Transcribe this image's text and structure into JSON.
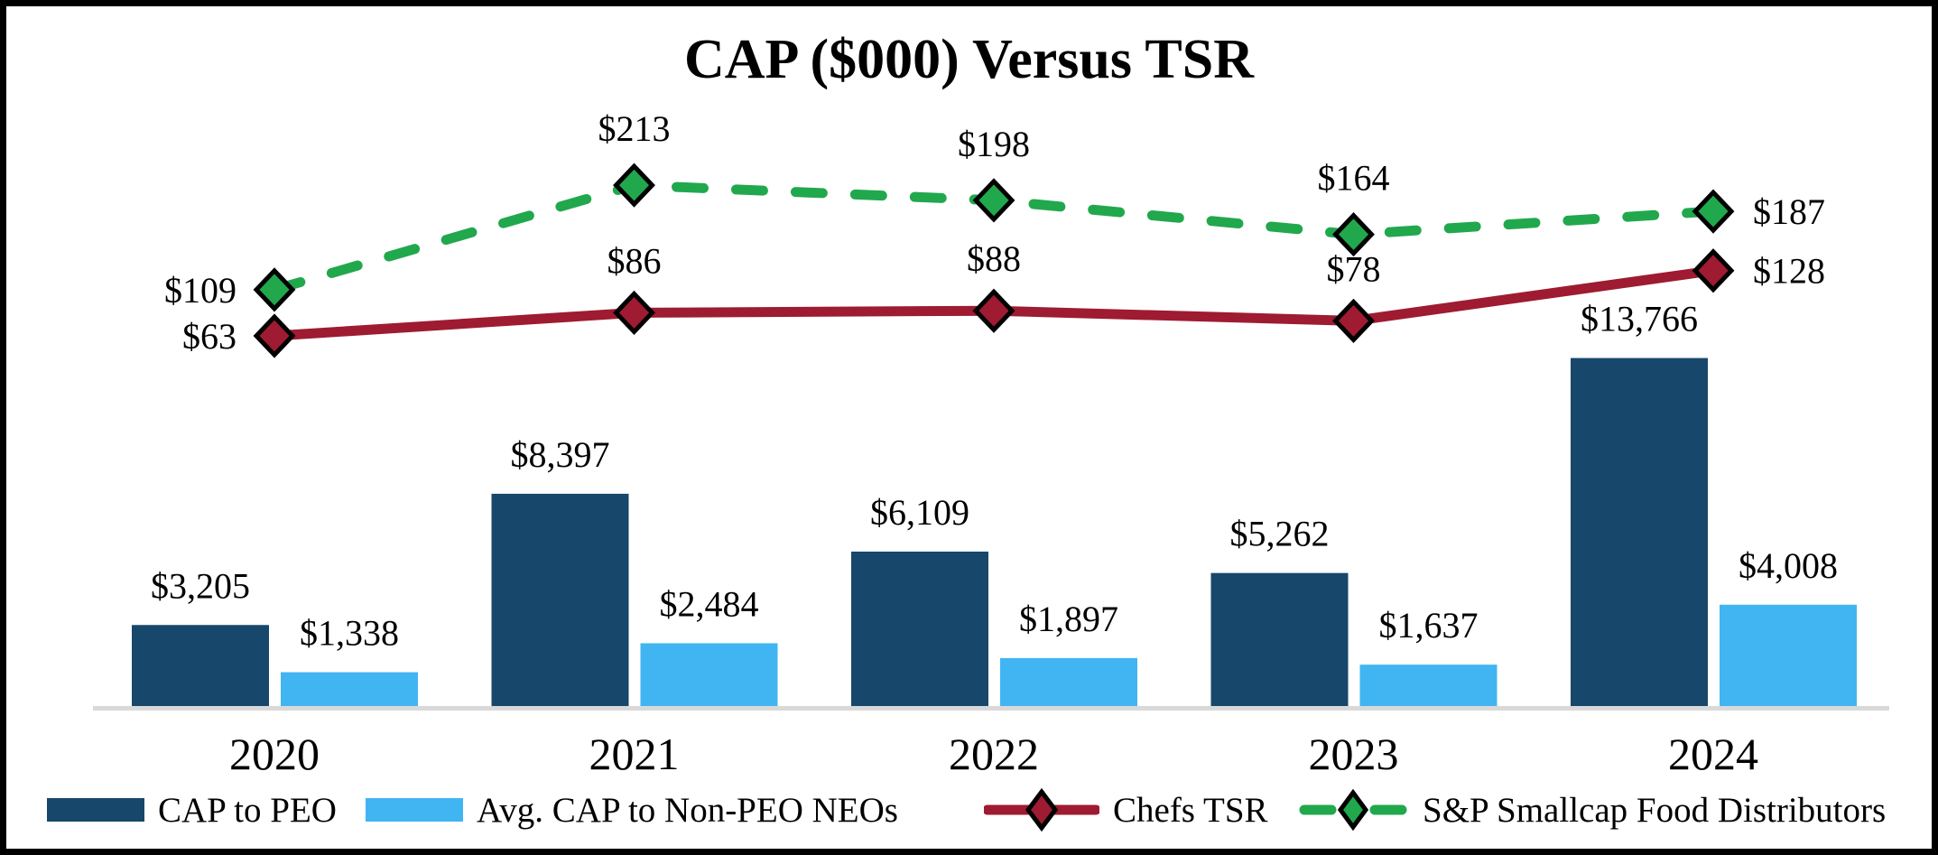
{
  "chart_data": {
    "type": "combo-bar-line",
    "title": "CAP ($000) Versus TSR",
    "categories": [
      "2020",
      "2021",
      "2022",
      "2023",
      "2024"
    ],
    "bar_series": [
      {
        "name": "CAP to PEO",
        "color": "#17476B",
        "values": [
          3205,
          8397,
          6109,
          5262,
          13766
        ],
        "labels": [
          "$3,205",
          "$8,397",
          "$6,109",
          "$5,262",
          "$13,766"
        ]
      },
      {
        "name": "Avg. CAP to Non-PEO NEOs",
        "color": "#41B5F2",
        "values": [
          1338,
          2484,
          1897,
          1637,
          4008
        ],
        "labels": [
          "$1,338",
          "$2,484",
          "$1,897",
          "$1,637",
          "$4,008"
        ]
      }
    ],
    "line_series": [
      {
        "name": "Chefs TSR",
        "color": "#9E1B32",
        "line_style": "solid",
        "marker": "diamond",
        "values": [
          63,
          86,
          88,
          78,
          128
        ],
        "labels": [
          "$63",
          "$86",
          "$88",
          "$78",
          "$128"
        ]
      },
      {
        "name": "S&P Smallcap Food Distributors",
        "color": "#21A84D",
        "line_style": "dashed",
        "marker": "diamond",
        "values": [
          109,
          213,
          198,
          164,
          187
        ],
        "labels": [
          "$109",
          "$213",
          "$198",
          "$164",
          "$187"
        ]
      }
    ],
    "line_label_placements": [
      "left",
      "above",
      "above",
      "above",
      "right"
    ],
    "axes": {
      "baseline_color": "#D9D9D9",
      "value_axis_visible": false,
      "bar_axis_min": 0,
      "bar_axis_implied_max": 14000,
      "line_axis_implied_range": [
        0,
        250
      ]
    },
    "legend_position": "bottom",
    "grid": "off"
  },
  "frame": {
    "border_color": "#000000",
    "background_color": "#FFFFFF"
  }
}
